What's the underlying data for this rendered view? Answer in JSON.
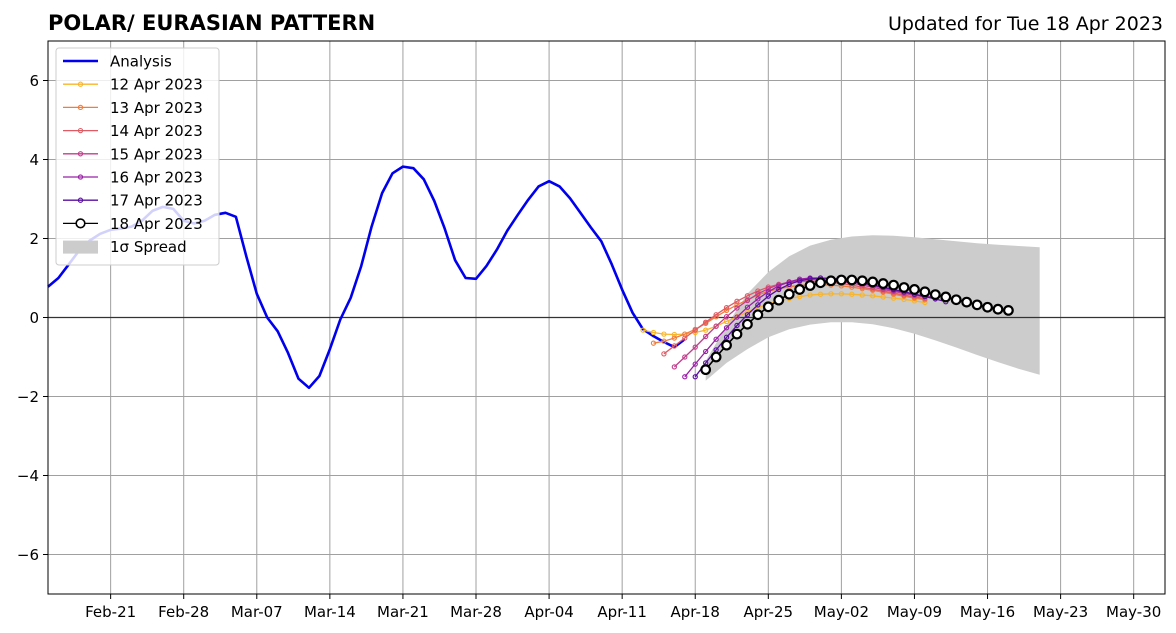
{
  "chart_data": {
    "type": "line",
    "title": "POLAR/ EURASIAN  PATTERN",
    "subtitle": "Updated for Tue 18 Apr 2023",
    "xlabel": "",
    "ylabel": "",
    "x_axis": {
      "start": "2023-02-15",
      "end": "2023-06-02",
      "ticks": [
        {
          "label": "Feb-21",
          "date": "2023-02-21"
        },
        {
          "label": "Feb-28",
          "date": "2023-02-28"
        },
        {
          "label": "Mar-07",
          "date": "2023-03-07"
        },
        {
          "label": "Mar-14",
          "date": "2023-03-14"
        },
        {
          "label": "Mar-21",
          "date": "2023-03-21"
        },
        {
          "label": "Mar-28",
          "date": "2023-03-28"
        },
        {
          "label": "Apr-04",
          "date": "2023-04-04"
        },
        {
          "label": "Apr-11",
          "date": "2023-04-11"
        },
        {
          "label": "Apr-18",
          "date": "2023-04-18"
        },
        {
          "label": "Apr-25",
          "date": "2023-04-25"
        },
        {
          "label": "May-02",
          "date": "2023-05-02"
        },
        {
          "label": "May-09",
          "date": "2023-05-09"
        },
        {
          "label": "May-16",
          "date": "2023-05-16"
        },
        {
          "label": "May-23",
          "date": "2023-05-23"
        },
        {
          "label": "May-30",
          "date": "2023-05-30"
        }
      ]
    },
    "ylim": [
      -7,
      7
    ],
    "y_ticks": [
      {
        "value": 6,
        "label": "6"
      },
      {
        "value": 4,
        "label": "4"
      },
      {
        "value": 2,
        "label": "2"
      },
      {
        "value": 0,
        "label": "0"
      },
      {
        "value": -2,
        "label": "−2"
      },
      {
        "value": -4,
        "label": "−4"
      },
      {
        "value": -6,
        "label": "−6"
      }
    ],
    "grid": true,
    "zero_line": true,
    "legend": {
      "placement": "top-left",
      "entries": [
        {
          "label": "Analysis",
          "color": "#0000ee",
          "kind": "thick-line"
        },
        {
          "label": "12 Apr 2023",
          "color": "#f9b52a",
          "kind": "dot-line"
        },
        {
          "label": "13 Apr 2023",
          "color": "#f17d3c",
          "kind": "dot-line"
        },
        {
          "label": "14 Apr 2023",
          "color": "#e05a63",
          "kind": "dot-line"
        },
        {
          "label": "15 Apr 2023",
          "color": "#c03e8c",
          "kind": "dot-line"
        },
        {
          "label": "16 Apr 2023",
          "color": "#9a20a6",
          "kind": "dot-line"
        },
        {
          "label": "17 Apr 2023",
          "color": "#5a0ea0",
          "kind": "dot-line"
        },
        {
          "label": "18 Apr 2023",
          "color": "#000000",
          "kind": "open-circle-line"
        },
        {
          "label": "1σ Spread",
          "color": "#cccccc",
          "kind": "patch"
        }
      ]
    },
    "analysis": {
      "name": "Analysis",
      "color": "#0000ee",
      "x": [
        "2023-02-15",
        "2023-02-16",
        "2023-02-17",
        "2023-02-18",
        "2023-02-19",
        "2023-02-20",
        "2023-02-21",
        "2023-02-22",
        "2023-02-23",
        "2023-02-24",
        "2023-02-25",
        "2023-02-26",
        "2023-02-27",
        "2023-02-28",
        "2023-03-01",
        "2023-03-02",
        "2023-03-03",
        "2023-03-04",
        "2023-03-05",
        "2023-03-06",
        "2023-03-07",
        "2023-03-08",
        "2023-03-09",
        "2023-03-10",
        "2023-03-11",
        "2023-03-12",
        "2023-03-13",
        "2023-03-14",
        "2023-03-15",
        "2023-03-16",
        "2023-03-17",
        "2023-03-18",
        "2023-03-19",
        "2023-03-20",
        "2023-03-21",
        "2023-03-22",
        "2023-03-23",
        "2023-03-24",
        "2023-03-25",
        "2023-03-26",
        "2023-03-27",
        "2023-03-28",
        "2023-03-29",
        "2023-03-30",
        "2023-03-31",
        "2023-04-01",
        "2023-04-02",
        "2023-04-03",
        "2023-04-04",
        "2023-04-05",
        "2023-04-06",
        "2023-04-07",
        "2023-04-08",
        "2023-04-09",
        "2023-04-10",
        "2023-04-11",
        "2023-04-12",
        "2023-04-13",
        "2023-04-14",
        "2023-04-15",
        "2023-04-16",
        "2023-04-17"
      ],
      "y": [
        0.78,
        1.0,
        1.35,
        1.7,
        1.95,
        2.12,
        2.22,
        2.25,
        2.3,
        2.45,
        2.7,
        2.8,
        2.75,
        2.45,
        2.38,
        2.45,
        2.6,
        2.65,
        2.55,
        1.55,
        0.6,
        0.0,
        -0.35,
        -0.9,
        -1.55,
        -1.78,
        -1.48,
        -0.8,
        -0.05,
        0.5,
        1.3,
        2.3,
        3.15,
        3.65,
        3.82,
        3.78,
        3.5,
        2.95,
        2.25,
        1.45,
        1.0,
        0.98,
        1.3,
        1.72,
        2.2,
        2.6,
        2.98,
        3.32,
        3.45,
        3.32,
        3.02,
        2.65,
        2.28,
        1.93,
        1.35,
        0.7,
        0.12,
        -0.3,
        -0.47,
        -0.62,
        -0.75,
        -0.55
      ]
    },
    "spread": {
      "name": "1σ Spread",
      "color": "#cccccc",
      "x": [
        "2023-04-19",
        "2023-04-21",
        "2023-04-23",
        "2023-04-25",
        "2023-04-27",
        "2023-04-29",
        "2023-05-01",
        "2023-05-03",
        "2023-05-05",
        "2023-05-07",
        "2023-05-09",
        "2023-05-11",
        "2023-05-13",
        "2023-05-15",
        "2023-05-17",
        "2023-05-19",
        "2023-05-21"
      ],
      "upper": [
        -1.1,
        -0.2,
        0.6,
        1.15,
        1.55,
        1.82,
        1.97,
        2.05,
        2.08,
        2.07,
        2.03,
        1.98,
        1.93,
        1.88,
        1.84,
        1.81,
        1.78
      ],
      "lower": [
        -1.6,
        -1.15,
        -0.8,
        -0.5,
        -0.3,
        -0.18,
        -0.12,
        -0.12,
        -0.17,
        -0.27,
        -0.41,
        -0.58,
        -0.76,
        -0.95,
        -1.13,
        -1.3,
        -1.45
      ]
    },
    "series": [
      {
        "name": "12 Apr 2023",
        "color": "#f9b52a",
        "start": "2023-04-13",
        "values": [
          -0.32,
          -0.38,
          -0.42,
          -0.43,
          -0.42,
          -0.38,
          -0.32,
          -0.22,
          -0.1,
          0.02,
          0.14,
          0.25,
          0.34,
          0.42,
          0.48,
          0.53,
          0.57,
          0.59,
          0.6,
          0.6,
          0.59,
          0.57,
          0.55,
          0.52,
          0.49,
          0.46,
          0.42,
          0.38
        ]
      },
      {
        "name": "13 Apr 2023",
        "color": "#f17d3c",
        "start": "2023-04-14",
        "values": [
          -0.65,
          -0.6,
          -0.52,
          -0.42,
          -0.3,
          -0.15,
          0.02,
          0.18,
          0.32,
          0.45,
          0.57,
          0.66,
          0.73,
          0.78,
          0.81,
          0.83,
          0.83,
          0.82,
          0.8,
          0.77,
          0.73,
          0.69,
          0.64,
          0.59,
          0.54,
          0.49,
          0.45
        ]
      },
      {
        "name": "14 Apr 2023",
        "color": "#e05a63",
        "start": "2023-04-15",
        "values": [
          -0.92,
          -0.72,
          -0.52,
          -0.32,
          -0.12,
          0.07,
          0.25,
          0.41,
          0.55,
          0.67,
          0.77,
          0.84,
          0.88,
          0.91,
          0.92,
          0.91,
          0.89,
          0.86,
          0.82,
          0.77,
          0.72,
          0.67,
          0.62,
          0.57,
          0.52,
          0.48
        ]
      },
      {
        "name": "15 Apr 2023",
        "color": "#c03e8c",
        "start": "2023-04-16",
        "values": [
          -1.25,
          -1.0,
          -0.75,
          -0.48,
          -0.22,
          0.02,
          0.24,
          0.43,
          0.6,
          0.73,
          0.83,
          0.9,
          0.94,
          0.96,
          0.96,
          0.94,
          0.91,
          0.87,
          0.82,
          0.77,
          0.71,
          0.66,
          0.61,
          0.56,
          0.52
        ]
      },
      {
        "name": "16 Apr 2023",
        "color": "#9a20a6",
        "start": "2023-04-17",
        "values": [
          -1.5,
          -1.18,
          -0.86,
          -0.55,
          -0.26,
          0.01,
          0.26,
          0.47,
          0.65,
          0.8,
          0.9,
          0.97,
          1.0,
          1.0,
          0.98,
          0.95,
          0.91,
          0.86,
          0.81,
          0.75,
          0.69,
          0.64,
          0.59,
          0.54,
          0.5
        ]
      },
      {
        "name": "17 Apr 2023",
        "color": "#5a0ea0",
        "start": "2023-04-18",
        "values": [
          -1.5,
          -1.15,
          -0.82,
          -0.5,
          -0.2,
          0.07,
          0.32,
          0.54,
          0.71,
          0.84,
          0.93,
          0.98,
          1.0,
          0.99,
          0.97,
          0.93,
          0.88,
          0.83,
          0.77,
          0.71,
          0.65,
          0.59,
          0.53,
          0.47,
          0.4
        ]
      },
      {
        "name": "18 Apr 2023",
        "color": "#000000",
        "start": "2023-04-19",
        "values": [
          -1.32,
          -1.0,
          -0.7,
          -0.42,
          -0.17,
          0.07,
          0.27,
          0.44,
          0.59,
          0.71,
          0.81,
          0.88,
          0.93,
          0.95,
          0.95,
          0.93,
          0.9,
          0.86,
          0.82,
          0.76,
          0.71,
          0.65,
          0.58,
          0.52,
          0.45,
          0.39,
          0.32,
          0.26,
          0.21,
          0.18
        ]
      }
    ]
  }
}
